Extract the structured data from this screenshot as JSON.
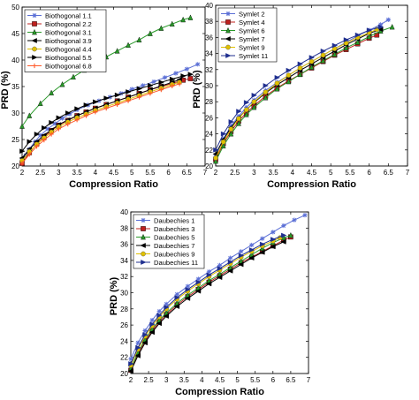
{
  "chart_data": [
    {
      "type": "line",
      "xlabel": "Compression Ratio",
      "ylabel": "PRD (%)",
      "xlim": [
        2,
        7
      ],
      "ylim": [
        20,
        50
      ],
      "xticks": [
        "2",
        "2.5",
        "3",
        "3.5",
        "4",
        "4.5",
        "5",
        "5.5",
        "6",
        "6.5",
        "7"
      ],
      "yticks": [
        "20",
        "25",
        "30",
        "35",
        "40",
        "45",
        "50"
      ],
      "grid": false,
      "legend_position": "top-left",
      "series": [
        {
          "name": "Biothogonal 1.1",
          "color": "#5b6fd6",
          "marker": "star",
          "x": [
            2.0,
            2.1,
            2.2,
            2.35,
            2.5,
            2.7,
            2.9,
            3.1,
            3.3,
            3.5,
            3.8,
            4.1,
            4.4,
            4.7,
            5.0,
            5.3,
            5.6,
            5.9,
            6.2,
            6.5,
            6.8
          ],
          "y": [
            20.8,
            22.0,
            23.2,
            24.6,
            25.8,
            27.0,
            28.0,
            29.0,
            29.8,
            30.6,
            31.5,
            32.3,
            33.0,
            33.7,
            34.5,
            35.2,
            35.9,
            36.7,
            37.5,
            38.3,
            39.2
          ]
        },
        {
          "name": "Biothogonal 2.2",
          "color": "#c0201e",
          "marker": "square",
          "x": [
            2.0,
            2.2,
            2.4,
            2.6,
            2.8,
            3.0,
            3.25,
            3.5,
            3.75,
            4.0,
            4.3,
            4.6,
            4.9,
            5.2,
            5.5,
            5.8,
            6.1,
            6.4,
            6.6
          ],
          "y": [
            20.5,
            22.5,
            24.2,
            25.5,
            26.7,
            27.7,
            28.6,
            29.5,
            30.2,
            30.9,
            31.6,
            32.3,
            33.0,
            33.7,
            34.4,
            35.0,
            35.6,
            36.2,
            36.5
          ]
        },
        {
          "name": "Biothogonal 3.1",
          "color": "#2a9a2a",
          "marker": "triangle-up",
          "x": [
            2.0,
            2.2,
            2.5,
            2.8,
            3.1,
            3.4,
            3.7,
            4.0,
            4.3,
            4.6,
            4.9,
            5.2,
            5.5,
            5.8,
            6.1,
            6.4,
            6.6
          ],
          "y": [
            27.5,
            29.5,
            31.8,
            33.8,
            35.4,
            36.8,
            38.1,
            39.4,
            40.6,
            41.7,
            42.8,
            43.8,
            45.0,
            46.0,
            46.8,
            47.6,
            48.0
          ]
        },
        {
          "name": "Biothogonal 3.9",
          "color": "#000000",
          "marker": "triangle-left",
          "x": [
            2.0,
            2.2,
            2.4,
            2.6,
            2.8,
            3.0,
            3.25,
            3.5,
            3.75,
            4.0,
            4.3,
            4.6,
            4.9,
            5.2,
            5.5,
            5.8,
            6.1,
            6.3
          ],
          "y": [
            21.5,
            23.2,
            24.6,
            25.8,
            26.8,
            27.8,
            28.7,
            29.5,
            30.2,
            30.9,
            31.6,
            32.3,
            33.0,
            33.7,
            34.4,
            35.1,
            35.8,
            36.3
          ]
        },
        {
          "name": "Biothogonal 4.4",
          "color": "#e0c000",
          "marker": "circle",
          "x": [
            2.0,
            2.2,
            2.4,
            2.6,
            2.8,
            3.0,
            3.25,
            3.5,
            3.75,
            4.0,
            4.3,
            4.6,
            4.9,
            5.2,
            5.5,
            5.8,
            6.1,
            6.3
          ],
          "y": [
            21.0,
            22.7,
            24.1,
            25.3,
            26.4,
            27.4,
            28.3,
            29.1,
            29.8,
            30.5,
            31.2,
            31.9,
            32.6,
            33.3,
            34.0,
            34.7,
            35.4,
            35.8
          ]
        },
        {
          "name": "Biothogonal 5.5",
          "color": "#000000",
          "marker": "triangle-right",
          "x": [
            2.0,
            2.2,
            2.4,
            2.6,
            2.8,
            3.0,
            3.25,
            3.5,
            3.75,
            4.0,
            4.3,
            4.6,
            4.9,
            5.2,
            5.5,
            5.8,
            6.1,
            6.4,
            6.6
          ],
          "y": [
            22.8,
            24.6,
            26.0,
            27.2,
            28.2,
            29.1,
            30.0,
            30.8,
            31.5,
            32.1,
            32.8,
            33.4,
            34.0,
            34.6,
            35.2,
            35.8,
            36.4,
            37.0,
            37.3
          ]
        },
        {
          "name": "Biothogonal 6.8",
          "color": "#ff5a2a",
          "marker": "plus",
          "x": [
            2.0,
            2.2,
            2.4,
            2.6,
            2.8,
            3.0,
            3.25,
            3.5,
            3.75,
            4.0,
            4.3,
            4.6,
            4.9,
            5.2,
            5.5,
            5.8,
            6.1,
            6.3
          ],
          "y": [
            20.5,
            22.2,
            23.7,
            24.9,
            26.0,
            27.0,
            27.9,
            28.7,
            29.5,
            30.2,
            30.9,
            31.6,
            32.3,
            33.0,
            33.7,
            34.4,
            35.1,
            35.5
          ]
        }
      ]
    },
    {
      "type": "line",
      "xlabel": "Compression Ratio",
      "ylabel": "PRD (%)",
      "xlim": [
        2,
        7
      ],
      "ylim": [
        20,
        40
      ],
      "xticks": [
        "2",
        "2.5",
        "3",
        "3.5",
        "4",
        "4.5",
        "5",
        "5.5",
        "6",
        "6.5",
        "7"
      ],
      "yticks": [
        "20",
        "22",
        "24",
        "26",
        "28",
        "30",
        "32",
        "34",
        "36",
        "38",
        "40"
      ],
      "grid": false,
      "legend_position": "top-left",
      "series": [
        {
          "name": "Symlet 2",
          "color": "#5b6fd6",
          "marker": "star",
          "x": [
            2.0,
            2.2,
            2.4,
            2.6,
            2.8,
            3.0,
            3.3,
            3.6,
            3.9,
            4.2,
            4.5,
            4.8,
            5.1,
            5.4,
            5.7,
            6.0,
            6.3,
            6.5
          ],
          "y": [
            21.2,
            23.4,
            25.0,
            26.2,
            27.3,
            28.2,
            29.4,
            30.4,
            31.3,
            32.2,
            33.0,
            33.8,
            34.6,
            35.4,
            36.2,
            36.9,
            37.6,
            38.2
          ]
        },
        {
          "name": "Symlet 4",
          "color": "#c0201e",
          "marker": "square",
          "x": [
            2.0,
            2.2,
            2.4,
            2.6,
            2.8,
            3.0,
            3.3,
            3.6,
            3.9,
            4.2,
            4.5,
            4.8,
            5.1,
            5.4,
            5.7,
            6.0,
            6.2
          ],
          "y": [
            20.8,
            22.8,
            24.3,
            25.6,
            26.6,
            27.5,
            28.7,
            29.7,
            30.6,
            31.4,
            32.2,
            33.0,
            33.8,
            34.5,
            35.2,
            35.9,
            36.3
          ]
        },
        {
          "name": "Symlet 6",
          "color": "#2a9a2a",
          "marker": "triangle-up",
          "x": [
            2.0,
            2.2,
            2.4,
            2.6,
            2.8,
            3.0,
            3.3,
            3.6,
            3.9,
            4.2,
            4.5,
            4.8,
            5.1,
            5.4,
            5.7,
            6.0,
            6.3,
            6.6
          ],
          "y": [
            20.6,
            22.5,
            24.0,
            25.3,
            26.4,
            27.3,
            28.5,
            29.6,
            30.5,
            31.4,
            32.3,
            33.1,
            33.9,
            34.7,
            35.4,
            36.1,
            36.8,
            37.3
          ]
        },
        {
          "name": "Symlet 7",
          "color": "#000000",
          "marker": "triangle-left",
          "x": [
            2.0,
            2.2,
            2.4,
            2.6,
            2.8,
            3.0,
            3.3,
            3.6,
            3.9,
            4.2,
            4.5,
            4.8,
            5.1,
            5.4,
            5.7,
            6.0,
            6.3
          ],
          "y": [
            21.5,
            23.3,
            24.8,
            26.0,
            27.0,
            27.9,
            29.1,
            30.1,
            31.0,
            31.9,
            32.7,
            33.5,
            34.3,
            35.1,
            35.8,
            36.5,
            37.0
          ]
        },
        {
          "name": "Symlet 9",
          "color": "#e0c000",
          "marker": "circle",
          "x": [
            2.0,
            2.2,
            2.4,
            2.6,
            2.8,
            3.0,
            3.3,
            3.6,
            3.9,
            4.2,
            4.5,
            4.8,
            5.1,
            5.4,
            5.7,
            6.0,
            6.2
          ],
          "y": [
            21.0,
            23.0,
            24.6,
            25.9,
            27.0,
            28.0,
            29.2,
            30.3,
            31.3,
            32.2,
            33.0,
            33.8,
            34.6,
            35.3,
            36.0,
            36.6,
            37.0
          ]
        },
        {
          "name": "Symlet 11",
          "color": "#1f2f8f",
          "marker": "triangle-right",
          "x": [
            2.0,
            2.2,
            2.4,
            2.6,
            2.8,
            3.0,
            3.3,
            3.6,
            3.9,
            4.2,
            4.5,
            4.8,
            5.1,
            5.4,
            5.7,
            6.0,
            6.3
          ],
          "y": [
            22.0,
            24.0,
            25.5,
            26.8,
            27.9,
            28.8,
            30.0,
            31.0,
            31.9,
            32.7,
            33.5,
            34.3,
            35.0,
            35.7,
            36.3,
            36.9,
            37.3
          ]
        }
      ]
    },
    {
      "type": "line",
      "xlabel": "Compression Ratio",
      "ylabel": "PRD (%)",
      "xlim": [
        2,
        7
      ],
      "ylim": [
        20,
        40
      ],
      "xticks": [
        "2",
        "2.5",
        "3",
        "3.5",
        "4",
        "4.5",
        "5",
        "5.5",
        "6",
        "6.5",
        "7"
      ],
      "yticks": [
        "20",
        "22",
        "24",
        "26",
        "28",
        "30",
        "32",
        "34",
        "36",
        "38",
        "40"
      ],
      "grid": false,
      "legend_position": "top-left",
      "series": [
        {
          "name": "Daubechies 1",
          "color": "#5b6fd6",
          "marker": "star",
          "x": [
            2.0,
            2.2,
            2.4,
            2.6,
            2.8,
            3.0,
            3.3,
            3.6,
            3.9,
            4.2,
            4.5,
            4.8,
            5.1,
            5.4,
            5.7,
            6.0,
            6.3,
            6.6,
            6.9
          ],
          "y": [
            21.8,
            23.8,
            25.3,
            26.6,
            27.7,
            28.6,
            29.8,
            30.8,
            31.7,
            32.6,
            33.4,
            34.3,
            35.1,
            35.9,
            36.7,
            37.5,
            38.3,
            39.0,
            39.6
          ]
        },
        {
          "name": "Daubechies 3",
          "color": "#c0201e",
          "marker": "square",
          "x": [
            2.0,
            2.2,
            2.4,
            2.6,
            2.8,
            3.0,
            3.3,
            3.6,
            3.9,
            4.2,
            4.5,
            4.8,
            5.1,
            5.4,
            5.7,
            6.0,
            6.3,
            6.5
          ],
          "y": [
            20.4,
            22.4,
            24.0,
            25.3,
            26.4,
            27.3,
            28.5,
            29.5,
            30.4,
            31.3,
            32.1,
            32.9,
            33.7,
            34.4,
            35.1,
            35.8,
            36.5,
            36.9
          ]
        },
        {
          "name": "Daubechies 5",
          "color": "#2a9a2a",
          "marker": "triangle-up",
          "x": [
            2.0,
            2.2,
            2.4,
            2.6,
            2.8,
            3.0,
            3.3,
            3.6,
            3.9,
            4.2,
            4.5,
            4.8,
            5.1,
            5.4,
            5.7,
            6.0,
            6.3,
            6.5
          ],
          "y": [
            20.6,
            22.6,
            24.2,
            25.5,
            26.6,
            27.5,
            28.7,
            29.7,
            30.6,
            31.5,
            32.3,
            33.1,
            33.9,
            34.7,
            35.5,
            36.2,
            36.8,
            37.1
          ]
        },
        {
          "name": "Daubechies 7",
          "color": "#000000",
          "marker": "triangle-left",
          "x": [
            2.0,
            2.2,
            2.4,
            2.6,
            2.8,
            3.0,
            3.3,
            3.6,
            3.9,
            4.2,
            4.5,
            4.8,
            5.1,
            5.4,
            5.7,
            6.0,
            6.3
          ],
          "y": [
            20.3,
            22.2,
            23.8,
            25.1,
            26.2,
            27.1,
            28.3,
            29.3,
            30.2,
            31.1,
            31.9,
            32.7,
            33.5,
            34.3,
            35.0,
            35.7,
            36.3
          ]
        },
        {
          "name": "Daubechies 9",
          "color": "#e0c000",
          "marker": "circle",
          "x": [
            2.0,
            2.2,
            2.4,
            2.6,
            2.8,
            3.0,
            3.3,
            3.6,
            3.9,
            4.2,
            4.5,
            4.8,
            5.1,
            5.4,
            5.7,
            6.0,
            6.2
          ],
          "y": [
            21.0,
            23.0,
            24.6,
            25.9,
            27.0,
            28.0,
            29.2,
            30.2,
            31.1,
            32.0,
            32.8,
            33.6,
            34.4,
            35.1,
            35.8,
            36.4,
            36.8
          ]
        },
        {
          "name": "Daubechies 11",
          "color": "#1f2f8f",
          "marker": "triangle-right",
          "x": [
            2.0,
            2.2,
            2.4,
            2.6,
            2.8,
            3.0,
            3.3,
            3.6,
            3.9,
            4.2,
            4.5,
            4.8,
            5.1,
            5.4,
            5.7,
            6.0,
            6.3
          ],
          "y": [
            21.2,
            23.2,
            24.8,
            26.1,
            27.2,
            28.2,
            29.4,
            30.4,
            31.3,
            32.2,
            33.0,
            33.8,
            34.6,
            35.3,
            36.0,
            36.6,
            37.1
          ]
        }
      ]
    }
  ]
}
